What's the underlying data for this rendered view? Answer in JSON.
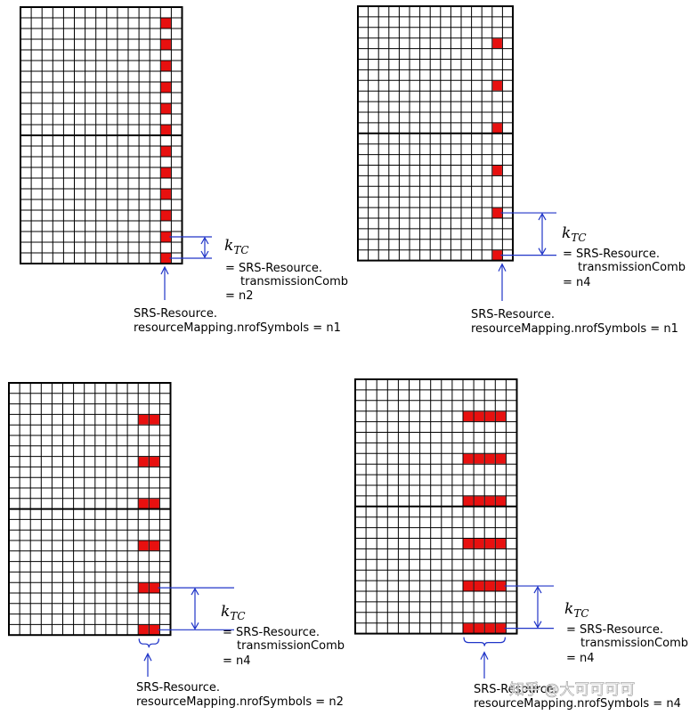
{
  "colors": {
    "grid": "#000000",
    "resource": "#e8100f",
    "annotation": "#2035c8"
  },
  "ktc_label": {
    "base": "k",
    "sub": "TC"
  },
  "panels": [
    {
      "id": "top-left",
      "comb_lines": [
        "= SRS-Resource.",
        "transmissionComb",
        "= n2"
      ],
      "mapping_lines": [
        "SRS-Resource.",
        "resourceMapping.nrofSymbols = n1"
      ]
    },
    {
      "id": "top-right",
      "comb_lines": [
        "= SRS-Resource.",
        "transmissionComb",
        "= n4"
      ],
      "mapping_lines": [
        "SRS-Resource.",
        "resourceMapping.nrofSymbols = n1"
      ]
    },
    {
      "id": "bottom-left",
      "comb_lines": [
        "= SRS-Resource.",
        "transmissionComb",
        "= n4"
      ],
      "mapping_lines": [
        "SRS-Resource.",
        "resourceMapping.nrofSymbols = n2"
      ]
    },
    {
      "id": "bottom-right",
      "comb_lines": [
        "= SRS-Resource.",
        "transmissionComb",
        "= n4"
      ],
      "mapping_lines": [
        "SRS-Resource.",
        "resourceMapping.nrofSymbols = n4"
      ]
    }
  ],
  "watermark": "知乎 @大可可可可"
}
